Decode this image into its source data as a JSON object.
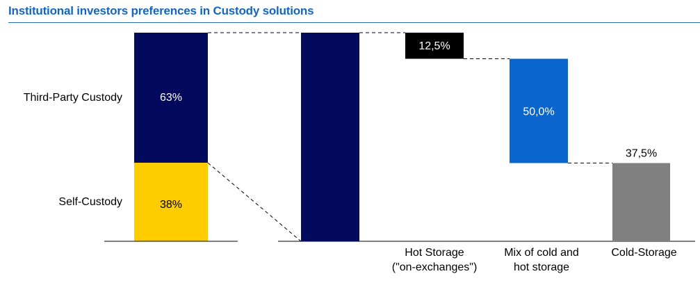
{
  "title": "Institutional investors preferences in Custody solutions",
  "colors": {
    "title": "#1565c0",
    "third_party": "#030a5e",
    "self_custody": "#ffcc00",
    "hot": "#000000",
    "mix": "#0a66cc",
    "cold": "#808080"
  },
  "chart_data": [
    {
      "type": "bar",
      "stacked": true,
      "categories": [
        ""
      ],
      "series": [
        {
          "name": "Third-Party Custody",
          "values": [
            63
          ],
          "label": "63%"
        },
        {
          "name": "Self-Custody",
          "values": [
            38
          ],
          "label": "38%"
        }
      ],
      "ylim": [
        0,
        100
      ]
    },
    {
      "type": "bar",
      "subtype": "waterfall",
      "categories": [
        "",
        "Hot Storage\n(\"on-exchanges\")",
        "Mix of cold and\nhot storage",
        "Cold-Storage"
      ],
      "values": [
        100,
        12.5,
        50.0,
        37.5
      ],
      "labels": [
        "",
        "12,5%",
        "50,0%",
        "37,5%"
      ],
      "ylim": [
        0,
        100
      ]
    }
  ]
}
